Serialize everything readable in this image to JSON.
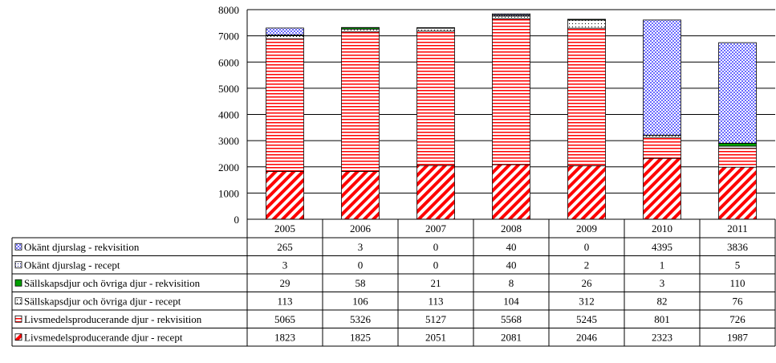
{
  "chart_data": {
    "type": "bar",
    "stacked": true,
    "title": "",
    "xlabel": "",
    "ylabel": "",
    "ylim": [
      0,
      8000
    ],
    "yticks": [
      0,
      1000,
      2000,
      3000,
      4000,
      5000,
      6000,
      7000,
      8000
    ],
    "grid": true,
    "legend": "data-table-below",
    "categories": [
      "2005",
      "2006",
      "2007",
      "2008",
      "2009",
      "2010",
      "2011"
    ],
    "series": [
      {
        "name": "Livsmedelsproducerande djur - recept",
        "values": [
          1823,
          1825,
          2051,
          2081,
          2046,
          2323,
          1987
        ],
        "color": "#ff0000",
        "pattern": "diagonal-stripes"
      },
      {
        "name": "Livsmedelsproducerande djur - rekvisition",
        "values": [
          5065,
          5326,
          5127,
          5568,
          5245,
          801,
          726
        ],
        "color": "#ff0000",
        "pattern": "horizontal-lines"
      },
      {
        "name": "Sällskapsdjur och övriga djur - recept",
        "values": [
          113,
          106,
          113,
          104,
          312,
          82,
          76
        ],
        "color": "#000000",
        "pattern": "dots"
      },
      {
        "name": "Sällskapsdjur och övriga djur - rekvisition",
        "values": [
          29,
          58,
          21,
          8,
          26,
          3,
          110
        ],
        "color": "#00a000",
        "pattern": "solid"
      },
      {
        "name": "Okänt djurslag - recept",
        "values": [
          3,
          0,
          0,
          40,
          2,
          1,
          5
        ],
        "color": "#000080",
        "pattern": "dots"
      },
      {
        "name": "Okänt djurslag - rekvisition",
        "values": [
          265,
          3,
          0,
          40,
          0,
          4395,
          3836
        ],
        "color": "#0000ff",
        "pattern": "dense-dots"
      }
    ]
  }
}
